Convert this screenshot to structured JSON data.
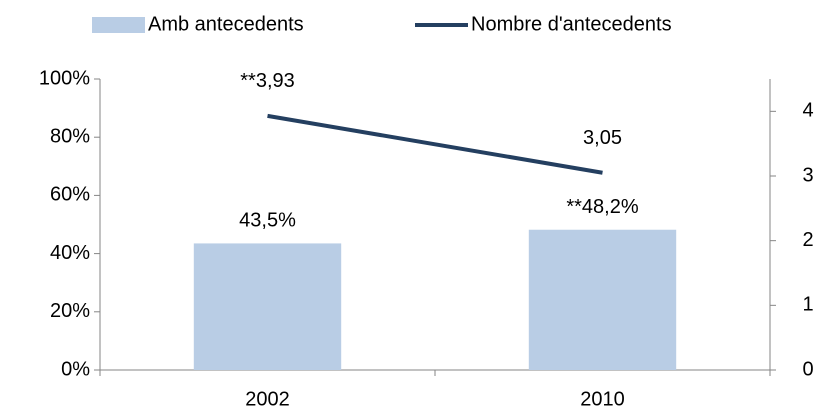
{
  "chart_data": {
    "type": "bar",
    "categories": [
      "2002",
      "2010"
    ],
    "series": [
      {
        "name": "Amb antecedents",
        "type": "bar",
        "axis": "y",
        "color": "#b9cde5",
        "values": [
          43.5,
          48.2
        ],
        "value_labels": [
          "43,5%",
          "**48,2%"
        ]
      },
      {
        "name": "Nombre d'antecedents",
        "type": "line",
        "axis": "y2",
        "color": "#243f60",
        "values": [
          3.93,
          3.05
        ],
        "value_labels": [
          "**3,93",
          "3,05"
        ]
      }
    ],
    "ylim": [
      0,
      100
    ],
    "yticks": [
      {
        "value": 0,
        "label": "0%"
      },
      {
        "value": 20,
        "label": "20%"
      },
      {
        "value": 40,
        "label": "40%"
      },
      {
        "value": 60,
        "label": "60%"
      },
      {
        "value": 80,
        "label": "80%"
      },
      {
        "value": 100,
        "label": "100%"
      }
    ],
    "y2lim": [
      0,
      4.5
    ],
    "y2ticks": [
      0,
      1,
      2,
      3,
      4
    ],
    "legend": "top",
    "grid": false
  }
}
